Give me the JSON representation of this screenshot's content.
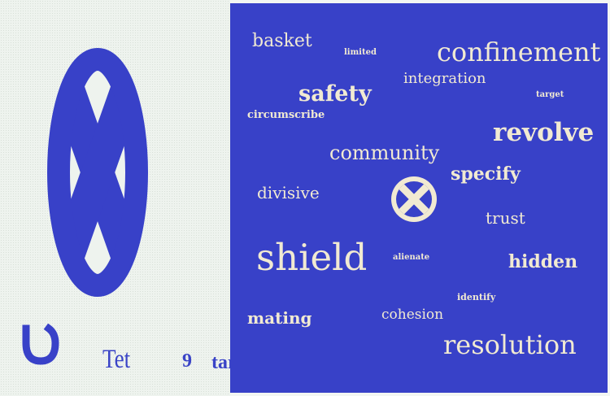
{
  "colors": {
    "blue": "#3841c8",
    "cream": "#f1ead2",
    "background": "#eef3ee"
  },
  "icons": {
    "large": "x-circle-emblem-icon",
    "small": "x-circle-emblem-icon",
    "corner": "u-shape-icon"
  },
  "bottom": {
    "label": "Tet",
    "number": "9",
    "word": "target"
  },
  "words": {
    "basket": "basket",
    "limited": "limited",
    "confinement": "confinement",
    "integration": "integration",
    "safety": "safety",
    "target": "target",
    "circumscribe": "circumscribe",
    "revolve": "revolve",
    "community": "community",
    "specify": "specify",
    "divisive": "divisive",
    "trust": "trust",
    "shield": "shield",
    "alienate": "alienate",
    "hidden": "hidden",
    "identify": "identify",
    "mating": "mating",
    "cohesion": "cohesion",
    "resolution": "resolution"
  }
}
